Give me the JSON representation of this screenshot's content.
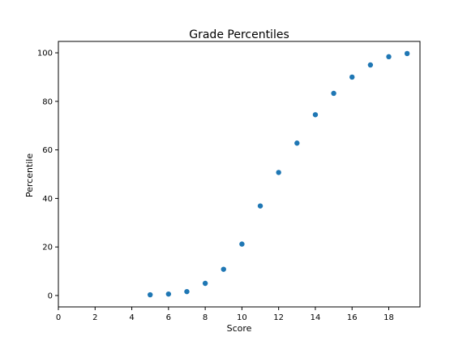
{
  "chart_data": {
    "type": "scatter",
    "title": "Grade Percentiles",
    "xlabel": "Score",
    "ylabel": "Percentile",
    "xlim": [
      0,
      19.7
    ],
    "ylim": [
      -4.7,
      104.7
    ],
    "xticks": [
      0,
      2,
      4,
      6,
      8,
      10,
      12,
      14,
      16,
      18
    ],
    "yticks": [
      0,
      20,
      40,
      60,
      80,
      100
    ],
    "grid": false,
    "legend": "none",
    "colors": {
      "marker": "#1f77b4"
    },
    "series": [
      {
        "points": [
          {
            "x": 5,
            "y": 0.3
          },
          {
            "x": 6,
            "y": 0.6
          },
          {
            "x": 7,
            "y": 1.6
          },
          {
            "x": 8,
            "y": 5.0
          },
          {
            "x": 9,
            "y": 10.8
          },
          {
            "x": 10,
            "y": 21.2
          },
          {
            "x": 11,
            "y": 36.9
          },
          {
            "x": 12,
            "y": 50.7
          },
          {
            "x": 13,
            "y": 62.8
          },
          {
            "x": 14,
            "y": 74.5
          },
          {
            "x": 15,
            "y": 83.3
          },
          {
            "x": 16,
            "y": 90.0
          },
          {
            "x": 17,
            "y": 95.0
          },
          {
            "x": 18,
            "y": 98.4
          },
          {
            "x": 19,
            "y": 99.7
          }
        ]
      }
    ]
  }
}
